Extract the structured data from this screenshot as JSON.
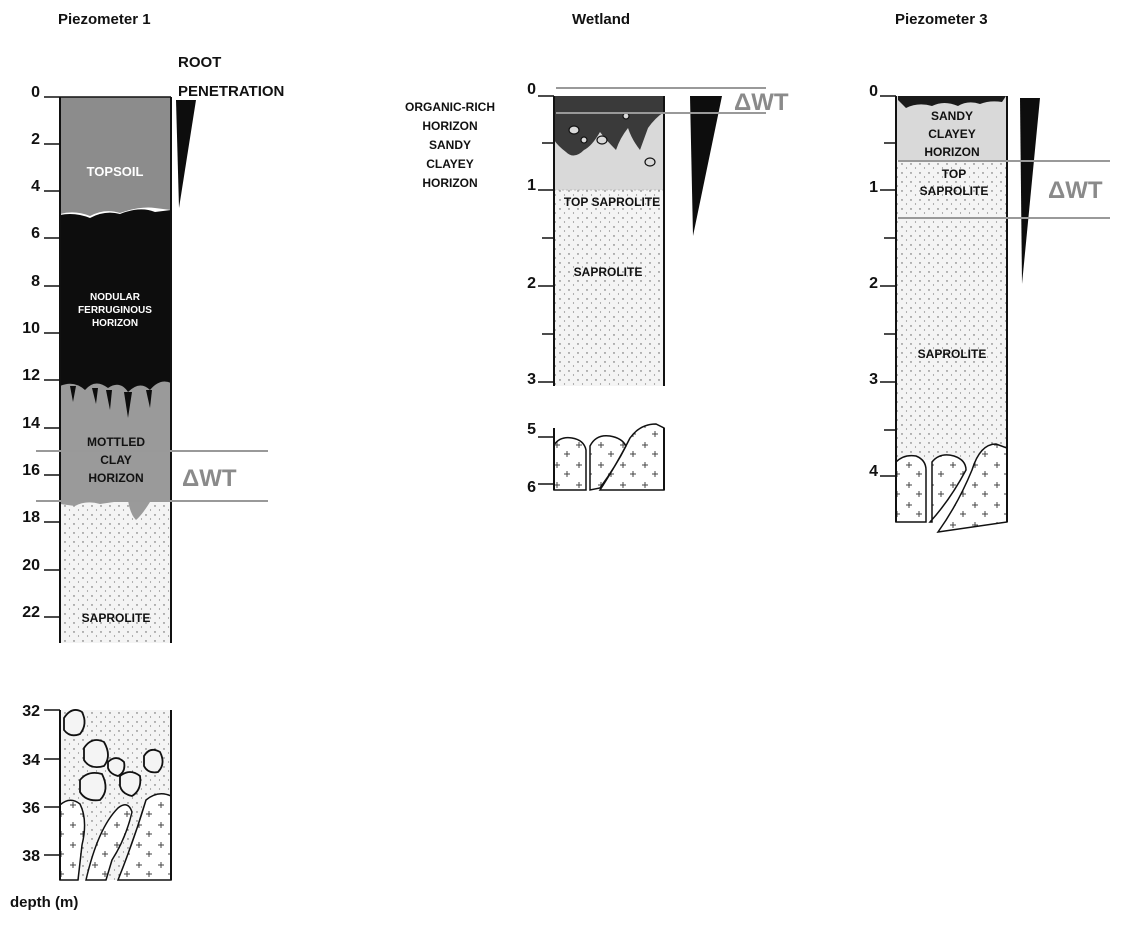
{
  "titles": {
    "p1": "Piezometer 1",
    "wetland": "Wetland",
    "p3": "Piezometer 3"
  },
  "root_penetration": [
    "ROOT",
    "PENETRATION"
  ],
  "depth_axis_label": "depth (m)",
  "delta_wt": "ΔWT",
  "p1": {
    "ticks_upper": [
      "0",
      "2",
      "4",
      "6",
      "8",
      "10",
      "12",
      "14",
      "16",
      "18",
      "20",
      "22"
    ],
    "ticks_lower": [
      "32",
      "34",
      "36",
      "38"
    ],
    "layers": {
      "topsoil": "TOPSOIL",
      "nodular": [
        "NODULAR",
        "FERRUGINOUS",
        "HORIZON"
      ],
      "mottled": [
        "MOTTLED",
        "CLAY",
        "HORIZON"
      ],
      "saprolite": "SAPROLITE"
    }
  },
  "wetland": {
    "ticks_upper": [
      "0",
      "1",
      "2",
      "3"
    ],
    "ticks_lower": [
      "5",
      "6"
    ],
    "side_labels": [
      "ORGANIC-RICH",
      "HORIZON",
      "SANDY",
      "CLAYEY",
      "HORIZON"
    ],
    "layers": {
      "top_saprolite": "TOP SAPROLITE",
      "saprolite": "SAPROLITE"
    }
  },
  "p3": {
    "ticks": [
      "0",
      "1",
      "2",
      "3",
      "4"
    ],
    "layers": {
      "sandy": [
        "SANDY",
        "CLAYEY",
        "HORIZON"
      ],
      "top_saprolite": [
        "TOP",
        "SAPROLITE"
      ],
      "saprolite": "SAPROLITE"
    }
  },
  "colors": {
    "topsoil": "#8c8c8c",
    "nodular": "#0d0d0d",
    "mottled": "#9a9a9a",
    "light_grey": "#d9d9d9",
    "dwt_line": "#999999"
  }
}
